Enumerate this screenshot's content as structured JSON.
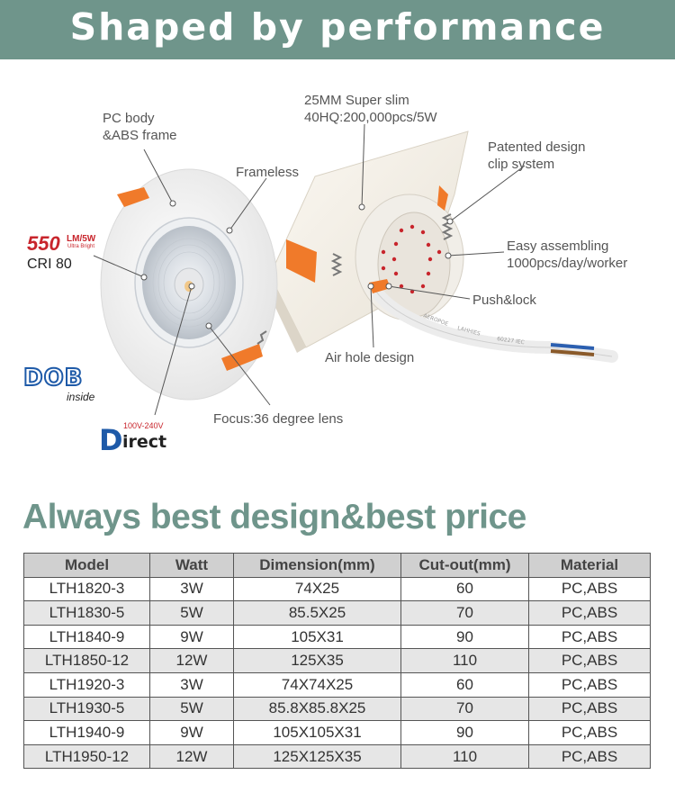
{
  "banner": {
    "title": "Shaped by performance"
  },
  "callouts": {
    "pc_body": [
      "PC body",
      "&ABS frame"
    ],
    "frameless": "Frameless",
    "super_slim": [
      "25MM Super slim",
      "40HQ:200,000pcs/5W"
    ],
    "patented": [
      "Patented design",
      "clip system"
    ],
    "easy_assembling": [
      "Easy assembling",
      "1000pcs/day/worker"
    ],
    "push_lock": "Push&lock",
    "air_hole": "Air hole design",
    "focus": "Focus:36 degree lens"
  },
  "badges": {
    "lumen_value": "550",
    "lumen_unit": "LM/5W",
    "lumen_sub": "Ultra Bright",
    "cri": "CRI 80",
    "dob": "DOB",
    "dob_sub": "inside",
    "direct_voltage": "100V-240V",
    "direct_first": "D",
    "direct_rest": "irect"
  },
  "colors": {
    "accent": "#6f958b",
    "red": "#c8252c",
    "blue": "#1e5aa8",
    "orange": "#f07a2a"
  },
  "headline": "Always best design&best price",
  "table": {
    "headers": [
      "Model",
      "Watt",
      "Dimension(mm)",
      "Cut-out(mm)",
      "Material"
    ],
    "rows": [
      [
        "LTH1820-3",
        "3W",
        "74X25",
        "60",
        "PC,ABS"
      ],
      [
        "LTH1830-5",
        "5W",
        "85.5X25",
        "70",
        "PC,ABS"
      ],
      [
        "LTH1840-9",
        "9W",
        "105X31",
        "90",
        "PC,ABS"
      ],
      [
        "LTH1850-12",
        "12W",
        "125X35",
        "110",
        "PC,ABS"
      ],
      [
        "LTH1920-3",
        "3W",
        "74X74X25",
        "60",
        "PC,ABS"
      ],
      [
        "LTH1930-5",
        "5W",
        "85.8X85.8X25",
        "70",
        "PC,ABS"
      ],
      [
        "LTH1940-9",
        "9W",
        "105X105X31",
        "90",
        "PC,ABS"
      ],
      [
        "LTH1950-12",
        "12W",
        "125X125X35",
        "110",
        "PC,ABS"
      ]
    ]
  },
  "cable_print": [
    "AEROPOE",
    "LAHHIES",
    "60227 IEC"
  ]
}
